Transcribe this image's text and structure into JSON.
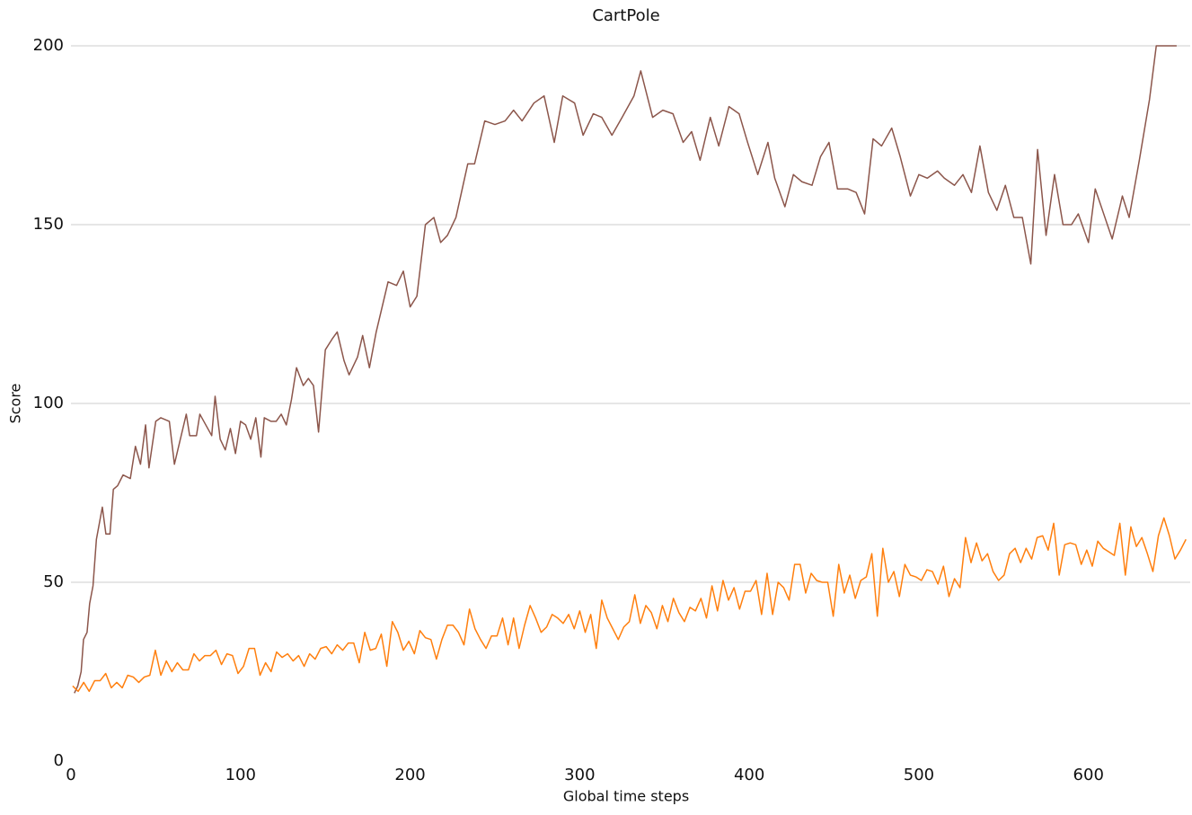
{
  "chart_data": {
    "type": "line",
    "title": "CartPole",
    "x_label": "Global time steps",
    "y_label": "Score",
    "xlim": [
      0,
      660
    ],
    "xticks": [
      0,
      100,
      200,
      300,
      400,
      500,
      600
    ],
    "ylim": [
      0,
      200
    ],
    "yticks": [
      0,
      50,
      100,
      150,
      200
    ],
    "grid": true,
    "series": [
      {
        "color": "#8c564b",
        "x": [
          2,
          4,
          6,
          7.4,
          9.5,
          11,
          13,
          15,
          18.5,
          20.6,
          23,
          25,
          27.5,
          30.7,
          35,
          38,
          41,
          44,
          46,
          50,
          53,
          58,
          61,
          68,
          70,
          74,
          76,
          83,
          85,
          88,
          91,
          94,
          97,
          100,
          103,
          106,
          109,
          112,
          114,
          118,
          121,
          124,
          127,
          130,
          133,
          137,
          140,
          143,
          146,
          150,
          154,
          157,
          161,
          164,
          169,
          172,
          176,
          180,
          183,
          187,
          192,
          196,
          200,
          204,
          209,
          214,
          218,
          222,
          227,
          234,
          238,
          244,
          250,
          256,
          261,
          266,
          273,
          279,
          285,
          290,
          297,
          302,
          308,
          313,
          319,
          325,
          332,
          336,
          343,
          349,
          355,
          361,
          366,
          371,
          377,
          382,
          388,
          394,
          399,
          405,
          411,
          415,
          421,
          426,
          431,
          437,
          442,
          447,
          452,
          458,
          463,
          468,
          473,
          478,
          484,
          489,
          495,
          500,
          505,
          511,
          515,
          521,
          526,
          531,
          536,
          541,
          546,
          551,
          556,
          561,
          566,
          570,
          575,
          580,
          585,
          590,
          594,
          600,
          604,
          609,
          614,
          620,
          624,
          630,
          636,
          640,
          647,
          652
        ],
        "values": [
          19,
          21,
          25,
          34,
          36,
          44,
          49,
          62,
          71,
          63.5,
          63.5,
          76,
          77,
          80,
          79,
          88,
          83,
          94,
          82,
          95,
          96,
          95,
          83,
          97,
          91,
          91,
          97,
          91,
          102,
          90,
          87,
          93,
          86,
          95,
          94,
          90,
          96,
          85,
          96,
          95,
          95,
          97,
          94,
          101,
          110,
          105,
          107,
          105,
          92,
          115,
          118,
          120,
          112,
          108,
          113,
          119,
          110,
          120,
          126,
          134,
          133,
          137,
          127,
          130,
          150,
          152,
          145,
          147,
          152,
          167,
          167,
          179,
          178,
          179,
          182,
          179,
          184,
          186,
          173,
          186,
          184,
          175,
          181,
          180,
          175,
          180,
          186,
          193,
          180,
          182,
          181,
          173,
          176,
          168,
          180,
          172,
          183,
          181,
          173,
          164,
          173,
          163,
          155,
          164,
          162,
          161,
          169,
          173,
          160,
          160,
          159,
          153,
          174,
          172,
          177,
          169,
          158,
          164,
          163,
          165,
          163,
          161,
          164,
          159,
          172,
          159,
          154,
          161,
          152,
          152,
          139,
          171,
          147,
          164,
          150,
          150,
          153,
          145,
          160,
          153,
          146,
          158,
          152,
          168,
          185,
          200,
          200,
          200
        ]
      },
      {
        "color": "#ff7f0e",
        "x": [
          1,
          4.25,
          7.5,
          10.75,
          14,
          17.25,
          20.5,
          23.75,
          27,
          30.25,
          33.5,
          36.75,
          40,
          43.25,
          46.5,
          49.75,
          53,
          56.25,
          59.5,
          62.75,
          66,
          69.25,
          72.5,
          75.75,
          79,
          82.25,
          85.5,
          88.75,
          92,
          95.25,
          98.5,
          101.75,
          105,
          108.25,
          111.5,
          114.75,
          118,
          121.25,
          124.5,
          127.75,
          131,
          134.25,
          137.5,
          140.75,
          144,
          147.25,
          150.5,
          153.75,
          157,
          160.25,
          163.5,
          166.75,
          170,
          173.25,
          176.5,
          179.75,
          183,
          186.25,
          189.5,
          192.75,
          196,
          199.25,
          202.5,
          205.75,
          209,
          212.25,
          215.5,
          218.75,
          222,
          225.25,
          228.5,
          231.75,
          235,
          238.25,
          241.5,
          244.75,
          248,
          251.25,
          254.5,
          257.75,
          261,
          264.25,
          267.5,
          270.75,
          274,
          277.25,
          280.5,
          283.75,
          287,
          290.25,
          293.5,
          296.75,
          300,
          303.25,
          306.5,
          309.75,
          313,
          316.25,
          319.5,
          322.75,
          326,
          329.25,
          332.5,
          335.75,
          339,
          342.25,
          345.5,
          348.75,
          352,
          355.25,
          358.5,
          361.75,
          365,
          368.25,
          371.5,
          374.75,
          378,
          381.25,
          384.5,
          387.75,
          391,
          394.25,
          397.5,
          400.75,
          404,
          407.25,
          410.5,
          413.75,
          417,
          420.25,
          423.5,
          426.75,
          430,
          433.25,
          436.5,
          439.75,
          443,
          446.25,
          449.5,
          452.75,
          456,
          459.25,
          462.5,
          465.75,
          469,
          472.25,
          475.5,
          478.75,
          482,
          485.25,
          488.5,
          491.75,
          495,
          498.25,
          501.5,
          504.75,
          508,
          511.25,
          514.5,
          517.75,
          521,
          524.25,
          527.5,
          530.75,
          534,
          537.25,
          540.5,
          543.75,
          547,
          550.25,
          553.5,
          556.75,
          560,
          563.25,
          566.5,
          569.75,
          573,
          576.25,
          579.5,
          582.75,
          586,
          589.25,
          592.5,
          595.75,
          599,
          602.25,
          605.5,
          608.75,
          612,
          615.25,
          618.5,
          621.75,
          625,
          628.25,
          631.5,
          634.75,
          638,
          641.25,
          644.5,
          647.75,
          651,
          654.25,
          657.5
        ],
        "values": [
          21,
          19.5,
          22,
          19.5,
          22.5,
          22.5,
          24.5,
          20.5,
          22,
          20.5,
          24,
          23.5,
          22,
          23.5,
          24,
          31,
          24,
          28,
          25,
          27.5,
          25.5,
          25.5,
          30,
          28,
          29.5,
          29.5,
          31,
          27,
          30,
          29.5,
          24.5,
          26.5,
          31.5,
          31.5,
          24,
          27.5,
          25,
          30.5,
          29,
          30,
          28,
          29.5,
          26.5,
          30,
          28.5,
          31.5,
          32,
          30,
          32.5,
          31,
          33,
          33,
          27.5,
          36,
          31,
          31.5,
          35.5,
          26.5,
          39,
          36,
          31,
          33.5,
          30,
          36.5,
          34.5,
          34,
          28.5,
          34,
          38,
          38,
          36,
          32.5,
          42.5,
          37,
          34,
          31.5,
          35,
          35,
          40,
          32.5,
          40,
          31.5,
          38,
          43.5,
          40,
          36,
          37.5,
          41,
          40,
          38.5,
          41,
          37,
          42,
          36,
          41,
          31.5,
          45,
          40,
          37,
          34,
          37.5,
          39,
          46.5,
          38.5,
          43.5,
          41.5,
          37,
          43.5,
          39,
          45.5,
          41.5,
          39,
          43,
          42,
          45.5,
          40,
          49,
          42,
          50.5,
          45,
          48.5,
          42.5,
          47.5,
          47.5,
          50.5,
          41,
          52.5,
          41,
          50,
          48.5,
          45,
          55,
          55,
          47,
          52.5,
          50.5,
          50,
          50,
          40.5,
          55,
          47,
          52,
          45.5,
          50.5,
          51.5,
          58,
          40.5,
          59.5,
          50,
          53,
          46,
          55,
          52,
          51.5,
          50.5,
          53.5,
          53,
          49.5,
          54.5,
          46,
          51,
          48.5,
          62.5,
          55.5,
          61,
          56,
          58,
          53,
          50.5,
          52,
          58,
          59.5,
          55.5,
          59.5,
          56.5,
          62.5,
          63,
          59,
          66.5,
          52,
          60.5,
          61,
          60.5,
          55,
          59,
          54.5,
          61.5,
          59.5,
          58.5,
          57.5,
          66.5,
          52,
          65.5,
          60,
          62.5,
          58,
          53,
          63,
          68,
          63,
          56.5,
          59,
          62
        ]
      }
    ]
  }
}
